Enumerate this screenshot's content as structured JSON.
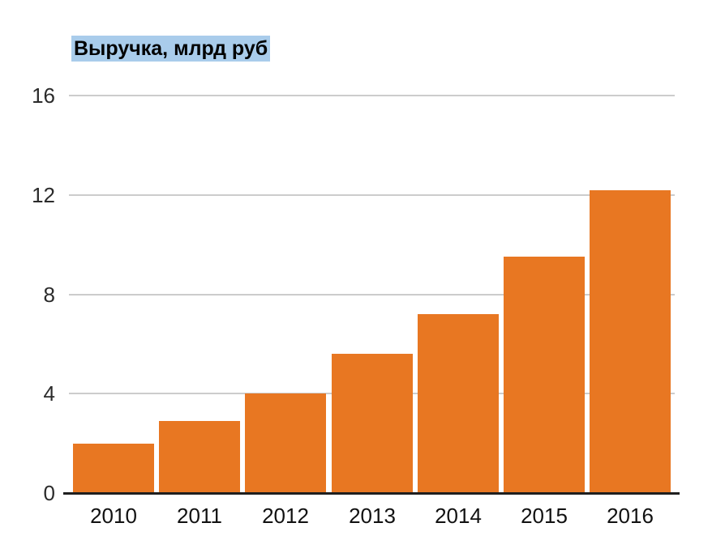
{
  "page": {
    "background": "#ffffff"
  },
  "chart_data": {
    "type": "bar",
    "title": "Выручка, млрд руб",
    "categories": [
      "2010",
      "2011",
      "2012",
      "2013",
      "2014",
      "2015",
      "2016"
    ],
    "values": [
      2.0,
      2.9,
      4.0,
      5.6,
      7.2,
      9.5,
      12.2
    ],
    "xlabel": "",
    "ylabel": "",
    "ylim": [
      0,
      16
    ],
    "yticks": [
      0,
      4,
      8,
      12,
      16
    ],
    "grid": true,
    "legend": false,
    "colors": {
      "bar": "#E87722",
      "gridline": "#CCCCCC",
      "axis_line": "#1F1F1F",
      "tick_label": "#2B2B2B",
      "title_text": "#000000",
      "title_highlight": "#A9CCEB"
    }
  }
}
